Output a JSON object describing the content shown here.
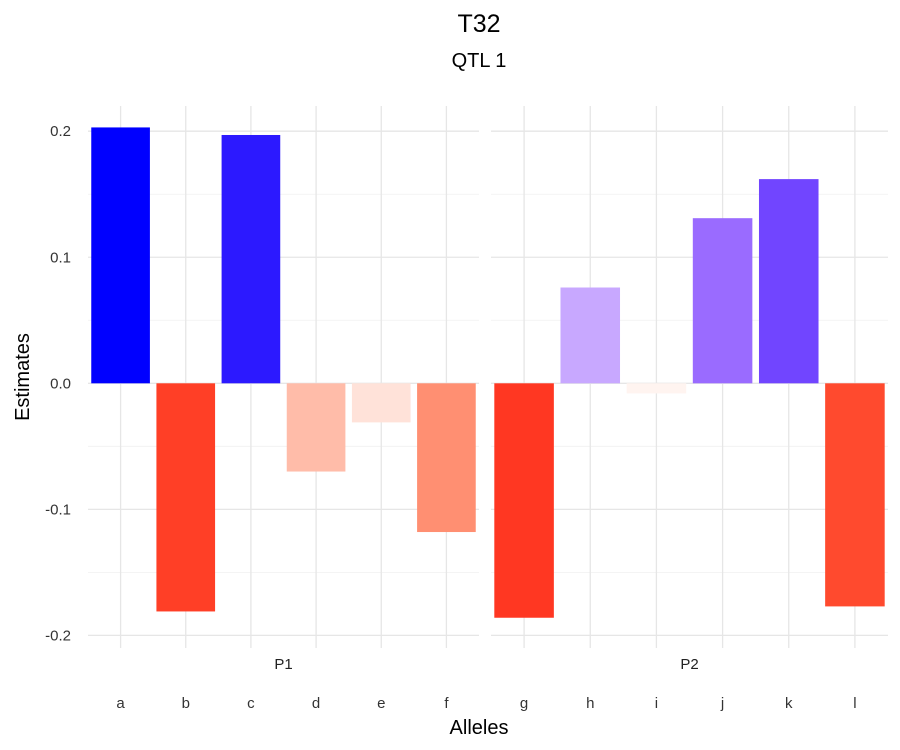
{
  "chart_data": {
    "type": "bar",
    "title": "T32",
    "subtitle": "QTL 1",
    "xlabel": "Alleles",
    "ylabel": "Estimates",
    "ylim": [
      -0.21,
      0.22
    ],
    "yticks": [
      -0.2,
      -0.1,
      0.0,
      0.1,
      0.2
    ],
    "ytick_labels": [
      "-0.2",
      "-0.1",
      "0.0",
      "0.1",
      "0.2"
    ],
    "grid": true,
    "panels": [
      {
        "name": "P1",
        "categories": [
          "a",
          "b",
          "c",
          "d",
          "e",
          "f"
        ],
        "values": [
          0.203,
          -0.181,
          0.197,
          -0.07,
          -0.031,
          -0.118
        ],
        "colors": [
          "#0000FF",
          "#FF3F26",
          "#2C19FF",
          "#FFBCA9",
          "#FFE2D9",
          "#FF8F72"
        ]
      },
      {
        "name": "P2",
        "categories": [
          "g",
          "h",
          "i",
          "j",
          "k",
          "l"
        ],
        "values": [
          -0.186,
          0.076,
          -0.008,
          0.131,
          0.162,
          -0.177
        ],
        "colors": [
          "#FF3722",
          "#C8A8FF",
          "#FFF4F0",
          "#9A6BFF",
          "#7145FF",
          "#FF4A2E"
        ]
      }
    ]
  }
}
